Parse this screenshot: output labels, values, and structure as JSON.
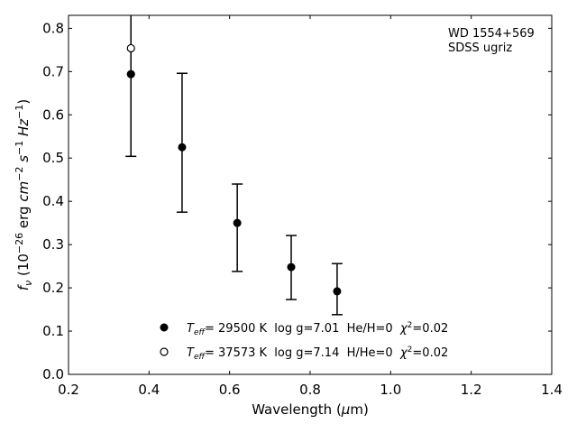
{
  "chart_data": {
    "type": "scatter",
    "title": "",
    "xlabel": {
      "main": "Wavelength (",
      "mu": "μ",
      "unit": "m)"
    },
    "ylabel": {
      "f": "f",
      "nu": "ν",
      "p1": " (10",
      "e1": "−26",
      "p2": " erg ",
      "cm": "cm",
      "e2": "−2",
      "s": " s",
      "e3": "−1",
      "hz": " Hz",
      "e4": "−1",
      "p3": ")"
    },
    "xlim": [
      0.2,
      1.4
    ],
    "ylim": [
      0.0,
      0.83
    ],
    "xticks": [
      "0.2",
      "0.4",
      "0.6",
      "0.8",
      "1.0",
      "1.2",
      "1.4"
    ],
    "xtick_values": [
      0.2,
      0.4,
      0.6,
      0.8,
      1.0,
      1.2,
      1.4
    ],
    "yticks": [
      "0.0",
      "0.1",
      "0.2",
      "0.3",
      "0.4",
      "0.5",
      "0.6",
      "0.7",
      "0.8"
    ],
    "ytick_values": [
      0.0,
      0.1,
      0.2,
      0.3,
      0.4,
      0.5,
      0.6,
      0.7,
      0.8
    ],
    "annotation": [
      "WD 1554+569",
      "SDSS ugriz"
    ],
    "observed": {
      "x": [
        0.355,
        0.482,
        0.619,
        0.753,
        0.867
      ],
      "y": [
        0.694,
        0.525,
        0.35,
        0.248,
        0.192
      ],
      "err_low": [
        0.504,
        0.375,
        0.238,
        0.173,
        0.138
      ],
      "err_high": [
        0.884,
        0.696,
        0.44,
        0.321,
        0.256
      ]
    },
    "series": [
      {
        "name": "He/H=0 model",
        "marker": "filled",
        "x": [
          0.355
        ],
        "y": [
          0.694
        ],
        "legend": {
          "t": "T",
          "eff": "eff",
          "body": "= 29500 K  log g=7.01  He/H=0  ",
          "chi": "χ",
          "sq": "2",
          "tail": "=0.02"
        }
      },
      {
        "name": "H/He=0 model",
        "marker": "open",
        "x": [
          0.355
        ],
        "y": [
          0.754
        ],
        "legend": {
          "t": "T",
          "eff": "eff",
          "body": "= 37573 K  log g=7.14  H/He=0  ",
          "chi": "χ",
          "sq": "2",
          "tail": "=0.02"
        }
      }
    ],
    "legend_position": "bottom-center"
  }
}
